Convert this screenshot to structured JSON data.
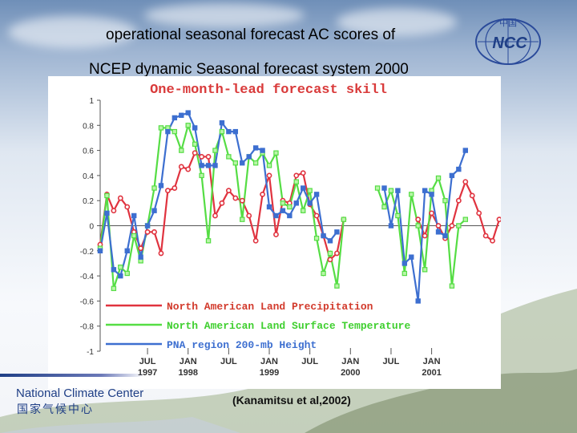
{
  "slide": {
    "title_line1": "operational seasonal forecast AC scores of",
    "title_line2": "NCEP dynamic Seasonal forecast system 2000",
    "citation": "(Kanamitsu et al,2002)",
    "footer_en": "National Climate Center",
    "footer_cn": "国家气候中心",
    "logo_text": "NCC",
    "logo_cn": "中国"
  },
  "chart_data": {
    "type": "line",
    "title": "One-month-lead forecast skill",
    "xlabel": "",
    "ylabel": "",
    "ylim": [
      -1,
      1
    ],
    "yticks": [
      "1",
      "0.8",
      "0.6",
      "0.4",
      "0.2",
      "0",
      "-0.2",
      "-0.4",
      "-0.6",
      "-0.8",
      "-1"
    ],
    "xticks": [
      {
        "month": 7,
        "label1": "JUL",
        "label2": "1997"
      },
      {
        "month": 13,
        "label1": "JAN",
        "label2": "1998"
      },
      {
        "month": 19,
        "label1": "JUL",
        "label2": ""
      },
      {
        "month": 25,
        "label1": "JAN",
        "label2": "1999"
      },
      {
        "month": 31,
        "label1": "JUL",
        "label2": ""
      },
      {
        "month": 37,
        "label1": "JAN",
        "label2": "2000"
      },
      {
        "month": 43,
        "label1": "JUL",
        "label2": ""
      },
      {
        "month": 49,
        "label1": "JAN",
        "label2": "2001"
      }
    ],
    "x_start": 0,
    "legend_placement": "bottom-left",
    "colors": {
      "precip": "#e0333f",
      "temp": "#55dd44",
      "pna": "#3d6fd0",
      "axis": "#555555",
      "title": "#d93a3a",
      "legend_text": "#d23a2c"
    },
    "series": [
      {
        "name": "North American Land Precipitation",
        "color": "#e0333f",
        "marker": "circle",
        "values": [
          -0.15,
          0.25,
          0.12,
          0.22,
          0.15,
          -0.05,
          -0.18,
          -0.05,
          -0.05,
          -0.22,
          0.28,
          0.3,
          0.47,
          0.45,
          0.58,
          0.55,
          0.55,
          0.08,
          0.18,
          0.28,
          0.22,
          0.2,
          0.08,
          -0.12,
          0.25,
          0.4,
          -0.07,
          0.2,
          0.18,
          0.4,
          0.42,
          0.17,
          0.08,
          -0.08,
          -0.27,
          -0.22,
          0.05,
          null,
          null,
          null,
          null,
          null,
          null,
          null,
          null,
          null,
          null,
          0.05,
          -0.08,
          0.1,
          0.0,
          -0.1,
          0.0,
          0.2,
          0.35,
          0.24,
          0.1,
          -0.08,
          -0.12,
          0.05
        ]
      },
      {
        "name": "North American Land Surface Temperature",
        "color": "#55dd44",
        "marker": "square",
        "values": [
          -0.18,
          0.24,
          -0.5,
          -0.33,
          -0.38,
          -0.08,
          -0.28,
          0.0,
          0.3,
          0.78,
          0.78,
          0.75,
          0.6,
          0.8,
          0.65,
          0.4,
          -0.12,
          0.6,
          0.75,
          0.55,
          0.5,
          0.05,
          0.55,
          0.5,
          0.58,
          0.48,
          0.58,
          0.18,
          0.15,
          0.35,
          0.12,
          0.28,
          -0.1,
          -0.38,
          -0.22,
          -0.48,
          0.05,
          null,
          null,
          null,
          null,
          0.3,
          0.15,
          0.28,
          0.08,
          -0.38,
          0.25,
          0.0,
          -0.35,
          0.28,
          0.38,
          0.2,
          -0.48,
          0.0,
          0.05
        ]
      },
      {
        "name": "PNA region 200-mb Height",
        "color": "#3d6fd0",
        "marker": "square",
        "values": [
          -0.2,
          0.1,
          -0.35,
          -0.4,
          -0.2,
          0.08,
          -0.25,
          0.0,
          0.12,
          0.32,
          0.75,
          0.86,
          0.88,
          0.9,
          0.78,
          0.48,
          0.48,
          0.48,
          0.82,
          0.75,
          0.75,
          0.5,
          0.55,
          0.62,
          0.6,
          0.15,
          0.08,
          0.12,
          0.08,
          0.18,
          0.3,
          0.18,
          0.25,
          -0.08,
          -0.12,
          -0.05,
          null,
          null,
          null,
          null,
          null,
          null,
          0.3,
          0.0,
          0.28,
          -0.3,
          -0.25,
          -0.6,
          0.28,
          0.25,
          -0.05,
          -0.08,
          0.4,
          0.45,
          0.6
        ]
      }
    ]
  }
}
